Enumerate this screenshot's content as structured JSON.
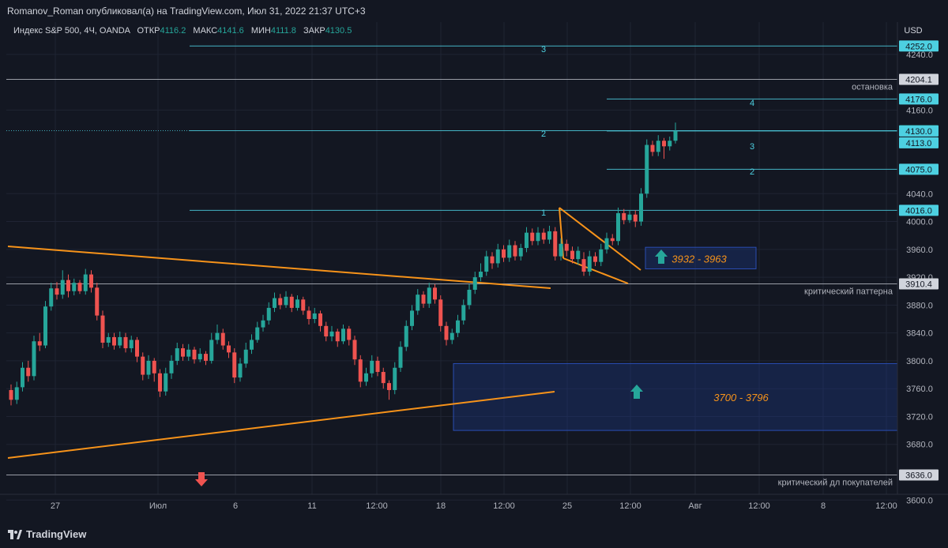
{
  "header": {
    "publisher": "Romanov_Roman опубликовал(а) на TradingView.com, Июл 31, 2022 21:37 UTC+3"
  },
  "legend": {
    "symbol": "Индекс S&P 500, 4Ч, OANDA",
    "open_label": "ОТКР",
    "open_value": "4116.2",
    "high_label": "МАКС",
    "high_value": "4141.6",
    "low_label": "МИН",
    "low_value": "4111.8",
    "close_label": "ЗАКР",
    "close_value": "4130.5"
  },
  "footer": {
    "brand": "TradingView"
  },
  "colors": {
    "background": "#131722",
    "up": "#26a69a",
    "down": "#ef5350",
    "pattern": "#f7931a",
    "level": "#4dd0e1",
    "white_level": "#b2b5be",
    "zone": "#1e3a8a"
  },
  "chart_data": {
    "type": "candlestick",
    "currency": "USD",
    "ylim": [
      3590,
      4262
    ],
    "y_ticks": [
      4240,
      4160,
      4040,
      4000,
      3960,
      3920,
      3880,
      3840,
      3800,
      3760,
      3720,
      3680,
      3600
    ],
    "x_tick_labels": [
      "27",
      "Июл",
      "6",
      "11",
      "12:00",
      "18",
      "12:00",
      "25",
      "12:00",
      "Авг",
      "12:00",
      "8",
      "12:00"
    ],
    "price_tags": [
      {
        "value": "4252.0",
        "price": 4252,
        "style": "cyan"
      },
      {
        "value": "4204.1",
        "price": 4204.1,
        "style": "white"
      },
      {
        "value": "4176.0",
        "price": 4176,
        "style": "cyan"
      },
      {
        "value": "4130.5",
        "price": 4130.5,
        "style": "current"
      },
      {
        "value": "4130.0",
        "price": 4130,
        "style": "cyan"
      },
      {
        "value": "4113.0",
        "price": 4113,
        "style": "cyan"
      },
      {
        "value": "4075.0",
        "price": 4075,
        "style": "cyan"
      },
      {
        "value": "4016.0",
        "price": 4016,
        "style": "cyan"
      },
      {
        "value": "3910.4",
        "price": 3910.4,
        "style": "white"
      },
      {
        "value": "3636.0",
        "price": 3636,
        "style": "white"
      }
    ],
    "level_labels": [
      {
        "text": "остановка",
        "price": 4204.1
      },
      {
        "text": "критический паттерна",
        "price": 3910.4
      },
      {
        "text": "критический дл покупателей",
        "price": 3636
      }
    ],
    "wave_labels": [
      "3",
      "2",
      "1",
      "4",
      "3",
      "2"
    ],
    "zones": [
      {
        "text": "3932 - 3963",
        "low": 3932,
        "high": 3963
      },
      {
        "text": "3700 - 3796",
        "low": 3700,
        "high": 3796
      }
    ],
    "candles": [
      [
        3758,
        3744,
        3766,
        3736
      ],
      [
        3744,
        3762,
        3770,
        3738
      ],
      [
        3762,
        3790,
        3798,
        3756
      ],
      [
        3790,
        3778,
        3800,
        3770
      ],
      [
        3778,
        3828,
        3836,
        3772
      ],
      [
        3828,
        3822,
        3840,
        3814
      ],
      [
        3822,
        3878,
        3886,
        3818
      ],
      [
        3878,
        3904,
        3912,
        3872
      ],
      [
        3904,
        3895,
        3913,
        3888
      ],
      [
        3895,
        3916,
        3930,
        3889
      ],
      [
        3916,
        3900,
        3924,
        3891
      ],
      [
        3900,
        3912,
        3918,
        3894
      ],
      [
        3912,
        3900,
        3916,
        3896
      ],
      [
        3900,
        3924,
        3932,
        3895
      ],
      [
        3924,
        3905,
        3930,
        3898
      ],
      [
        3905,
        3865,
        3912,
        3858
      ],
      [
        3865,
        3826,
        3872,
        3818
      ],
      [
        3826,
        3834,
        3840,
        3820
      ],
      [
        3834,
        3822,
        3840,
        3816
      ],
      [
        3822,
        3834,
        3842,
        3818
      ],
      [
        3834,
        3818,
        3840,
        3812
      ],
      [
        3818,
        3830,
        3836,
        3812
      ],
      [
        3830,
        3806,
        3834,
        3798
      ],
      [
        3806,
        3780,
        3812,
        3772
      ],
      [
        3780,
        3800,
        3808,
        3774
      ],
      [
        3800,
        3782,
        3804,
        3770
      ],
      [
        3782,
        3756,
        3788,
        3748
      ],
      [
        3756,
        3782,
        3790,
        3750
      ],
      [
        3782,
        3800,
        3808,
        3774
      ],
      [
        3800,
        3818,
        3826,
        3794
      ],
      [
        3818,
        3806,
        3824,
        3800
      ],
      [
        3806,
        3816,
        3824,
        3800
      ],
      [
        3816,
        3802,
        3820,
        3796
      ],
      [
        3802,
        3810,
        3818,
        3798
      ],
      [
        3810,
        3800,
        3814,
        3794
      ],
      [
        3800,
        3830,
        3840,
        3796
      ],
      [
        3830,
        3840,
        3852,
        3824
      ],
      [
        3840,
        3822,
        3846,
        3816
      ],
      [
        3822,
        3812,
        3828,
        3804
      ],
      [
        3812,
        3776,
        3818,
        3768
      ],
      [
        3776,
        3796,
        3804,
        3770
      ],
      [
        3796,
        3816,
        3826,
        3790
      ],
      [
        3816,
        3830,
        3838,
        3810
      ],
      [
        3830,
        3848,
        3856,
        3826
      ],
      [
        3848,
        3858,
        3866,
        3842
      ],
      [
        3858,
        3876,
        3884,
        3852
      ],
      [
        3876,
        3890,
        3898,
        3870
      ],
      [
        3890,
        3880,
        3896,
        3874
      ],
      [
        3880,
        3892,
        3900,
        3876
      ],
      [
        3892,
        3876,
        3896,
        3870
      ],
      [
        3876,
        3888,
        3894,
        3872
      ],
      [
        3888,
        3872,
        3892,
        3866
      ],
      [
        3872,
        3860,
        3878,
        3852
      ],
      [
        3860,
        3868,
        3876,
        3854
      ],
      [
        3868,
        3850,
        3872,
        3842
      ],
      [
        3850,
        3835,
        3856,
        3828
      ],
      [
        3835,
        3842,
        3850,
        3828
      ],
      [
        3842,
        3828,
        3846,
        3820
      ],
      [
        3828,
        3846,
        3852,
        3824
      ],
      [
        3846,
        3830,
        3850,
        3822
      ],
      [
        3830,
        3802,
        3836,
        3794
      ],
      [
        3802,
        3770,
        3808,
        3762
      ],
      [
        3770,
        3782,
        3790,
        3764
      ],
      [
        3782,
        3800,
        3808,
        3776
      ],
      [
        3800,
        3784,
        3806,
        3778
      ],
      [
        3784,
        3768,
        3790,
        3760
      ],
      [
        3768,
        3758,
        3772,
        3744
      ],
      [
        3758,
        3790,
        3798,
        3752
      ],
      [
        3790,
        3820,
        3828,
        3784
      ],
      [
        3820,
        3850,
        3858,
        3814
      ],
      [
        3850,
        3872,
        3880,
        3844
      ],
      [
        3872,
        3895,
        3903,
        3866
      ],
      [
        3895,
        3882,
        3900,
        3876
      ],
      [
        3882,
        3905,
        3912,
        3876
      ],
      [
        3905,
        3888,
        3910,
        3882
      ],
      [
        3888,
        3850,
        3894,
        3842
      ],
      [
        3850,
        3830,
        3856,
        3822
      ],
      [
        3830,
        3840,
        3846,
        3824
      ],
      [
        3840,
        3858,
        3866,
        3834
      ],
      [
        3858,
        3880,
        3888,
        3852
      ],
      [
        3880,
        3902,
        3910,
        3874
      ],
      [
        3902,
        3920,
        3928,
        3896
      ],
      [
        3920,
        3928,
        3940,
        3914
      ],
      [
        3928,
        3950,
        3958,
        3922
      ],
      [
        3950,
        3940,
        3956,
        3932
      ],
      [
        3940,
        3960,
        3968,
        3934
      ],
      [
        3960,
        3948,
        3966,
        3942
      ],
      [
        3948,
        3966,
        3974,
        3942
      ],
      [
        3966,
        3950,
        3972,
        3944
      ],
      [
        3950,
        3962,
        3968,
        3944
      ],
      [
        3962,
        3984,
        3992,
        3956
      ],
      [
        3984,
        3972,
        3990,
        3966
      ],
      [
        3972,
        3984,
        3992,
        3966
      ],
      [
        3984,
        3974,
        3990,
        3968
      ],
      [
        3974,
        3986,
        3994,
        3968
      ],
      [
        3986,
        3950,
        3992,
        3944
      ],
      [
        3950,
        3968,
        3976,
        3944
      ],
      [
        3968,
        3958,
        3974,
        3950
      ],
      [
        3958,
        3946,
        3964,
        3940
      ],
      [
        3946,
        3958,
        3964,
        3938
      ],
      [
        3946,
        3928,
        3956,
        3922
      ],
      [
        3928,
        3950,
        3958,
        3922
      ],
      [
        3950,
        3942,
        3956,
        3936
      ],
      [
        3942,
        3960,
        3968,
        3936
      ],
      [
        3960,
        3976,
        3984,
        3954
      ],
      [
        3976,
        3972,
        3982,
        3966
      ],
      [
        3972,
        4012,
        4020,
        3966
      ],
      [
        4012,
        4002,
        4018,
        3996
      ],
      [
        4002,
        4010,
        4016,
        3998
      ],
      [
        4010,
        4000,
        4016,
        3992
      ],
      [
        4000,
        4040,
        4048,
        3994
      ],
      [
        4040,
        4110,
        4118,
        4034
      ],
      [
        4110,
        4100,
        4116,
        4094
      ],
      [
        4100,
        4116,
        4124,
        4094
      ],
      [
        4116,
        4108,
        4120,
        4090
      ],
      [
        4108,
        4116,
        4122,
        4102
      ],
      [
        4116,
        4130,
        4142,
        4112
      ]
    ],
    "pattern_lines_price": [
      {
        "from": [
          -1,
          3957
        ],
        "to": [
          98,
          3912
        ]
      },
      {
        "from": [
          -1,
          3664
        ],
        "to": [
          98,
          3748
        ]
      },
      {
        "from": [
          -1,
          3914
        ],
        "to": [
          98,
          3912
        ]
      }
    ]
  }
}
